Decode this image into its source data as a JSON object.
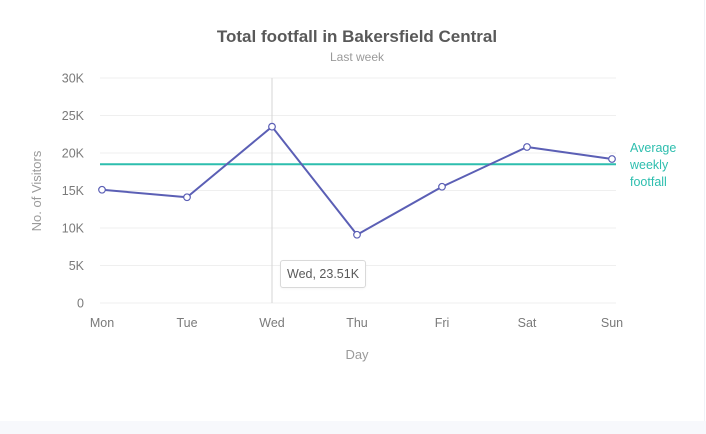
{
  "chart_data": {
    "type": "line",
    "title": "Total footfall in Bakersfield Central",
    "subtitle": "Last week",
    "xlabel": "Day",
    "ylabel": "No. of Visitors",
    "categories": [
      "Mon",
      "Tue",
      "Wed",
      "Thu",
      "Fri",
      "Sat",
      "Sun"
    ],
    "series": [
      {
        "name": "Footfall",
        "values": [
          15100,
          14100,
          23510,
          9100,
          15500,
          20800,
          19200
        ]
      }
    ],
    "ylim": [
      0,
      30000
    ],
    "yticks": [
      0,
      5000,
      10000,
      15000,
      20000,
      25000,
      30000
    ],
    "ytick_labels": [
      "0",
      "5K",
      "10K",
      "15K",
      "20K",
      "25K",
      "30K"
    ],
    "grid": true,
    "trendline": {
      "value": 18500,
      "label_lines": [
        "Average",
        "weekly",
        "footfall"
      ]
    },
    "tooltip": {
      "category": "Wed",
      "text": "Wed, 23.51K"
    },
    "colors": {
      "series": "#5b5fb5",
      "trendline": "#2dbeae",
      "grid": "#efefef",
      "crosshair": "#d6d6d6"
    }
  }
}
